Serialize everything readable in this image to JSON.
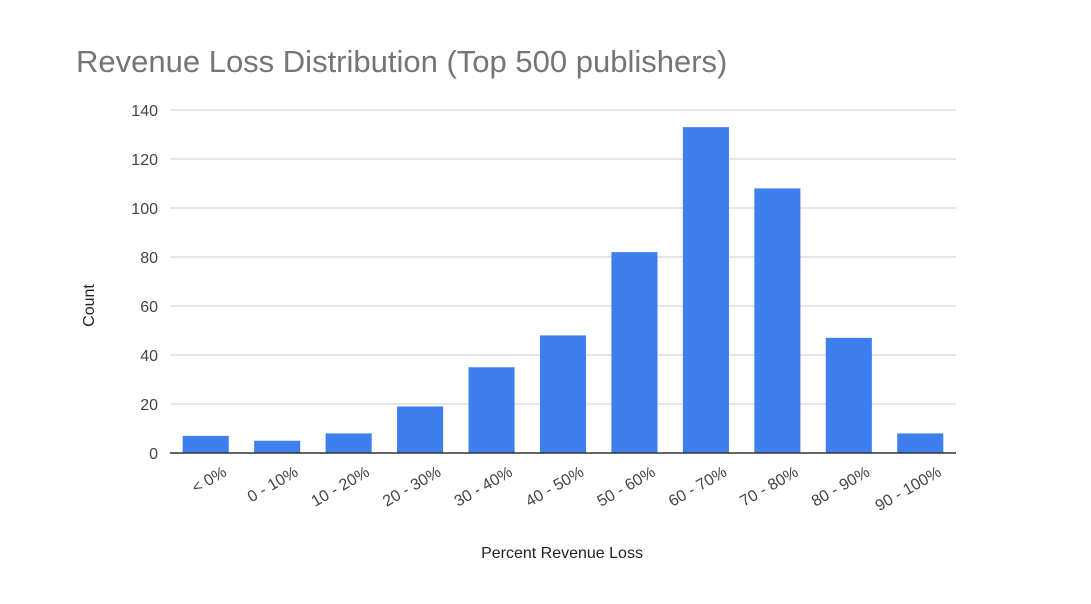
{
  "chart_data": {
    "type": "bar",
    "title": "Revenue Loss Distribution (Top 500 publishers)",
    "xlabel": "Percent Revenue Loss",
    "ylabel": "Count",
    "categories": [
      "< 0%",
      "0 - 10%",
      "10 - 20%",
      "20 - 30%",
      "30 - 40%",
      "40 - 50%",
      "50 - 60%",
      "60 - 70%",
      "70 - 80%",
      "80 - 90%",
      "90 - 100%"
    ],
    "values": [
      7,
      5,
      8,
      19,
      35,
      48,
      82,
      133,
      108,
      47,
      8
    ],
    "ylim": [
      0,
      140
    ],
    "yticks": [
      0,
      20,
      40,
      60,
      80,
      100,
      120,
      140
    ],
    "grid": true,
    "legend": "none",
    "bar_color": "#3d7fed"
  }
}
